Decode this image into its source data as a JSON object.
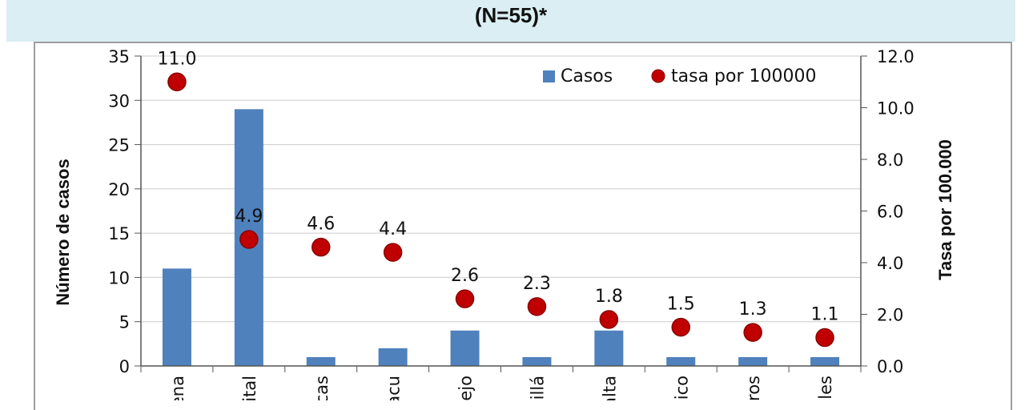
{
  "header": {
    "title": "(N=55)*"
  },
  "colors": {
    "bar": "#4f81bd",
    "dot": "#c00000",
    "dot_edge": "#8b0000",
    "grid": "#cccccc"
  },
  "chart_data": {
    "type": "bar",
    "categories": [
      "ena",
      "ital",
      "cas",
      "acu",
      "ejo",
      "illá",
      "alta",
      "ico",
      "ros",
      "les"
    ],
    "series": [
      {
        "name": "Casos",
        "type": "bar",
        "axis": "left",
        "values": [
          11,
          29,
          1,
          2,
          4,
          1,
          4,
          1,
          1,
          1
        ]
      },
      {
        "name": "tasa por 100000",
        "type": "scatter",
        "axis": "right",
        "values": [
          11.0,
          4.9,
          4.6,
          4.4,
          2.6,
          2.3,
          1.8,
          1.5,
          1.3,
          1.1
        ]
      }
    ],
    "data_labels": [
      "11.0",
      "4.9",
      "4.6",
      "4.4",
      "2.6",
      "2.3",
      "1.8",
      "1.5",
      "1.3",
      "1.1"
    ],
    "ylabel": "Número de casos",
    "y2label": "Tasa por 100.000",
    "ylim": [
      0,
      35
    ],
    "y2lim": [
      0,
      12
    ],
    "yticks": [
      "0",
      "5",
      "10",
      "15",
      "20",
      "25",
      "30",
      "35"
    ],
    "y2ticks": [
      "0.0",
      "2.0",
      "4.0",
      "6.0",
      "8.0",
      "10.0",
      "12.0"
    ],
    "grid": true,
    "legend_position": "top-right"
  }
}
